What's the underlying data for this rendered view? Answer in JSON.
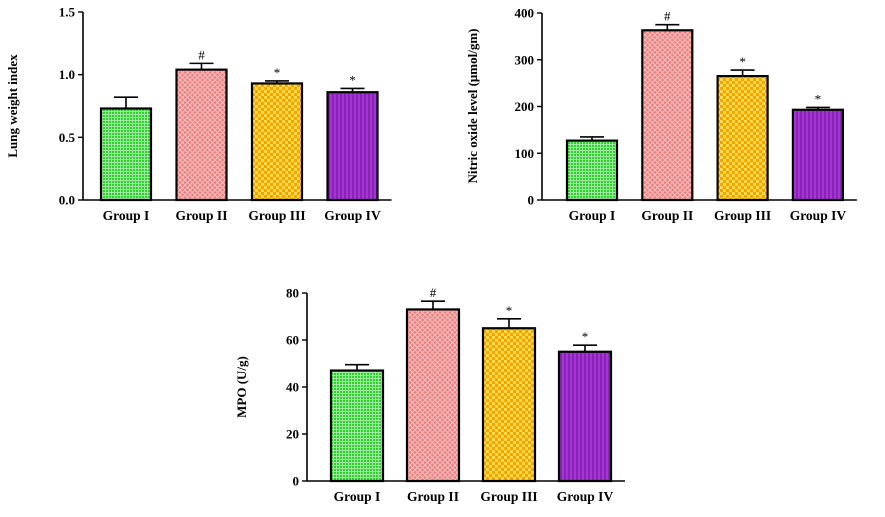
{
  "colors": {
    "group1": "#2fd12f",
    "group2": "#f08080",
    "group3": "#f5a500",
    "group4": "#a633d6",
    "axis": "#000000"
  },
  "chart_data": [
    {
      "id": "lung",
      "type": "bar",
      "title": "",
      "xlabel": "",
      "ylabel": "Lung weight index",
      "categories": [
        "Group I",
        "Group II",
        "Group III",
        "Group IV"
      ],
      "values": [
        0.73,
        1.04,
        0.93,
        0.86
      ],
      "errors": [
        0.09,
        0.05,
        0.02,
        0.03
      ],
      "significance": [
        "",
        "#",
        "*",
        "*"
      ],
      "ylim": [
        0,
        1.5
      ],
      "yticks": [
        0,
        0.5,
        1.0,
        1.5
      ],
      "ytick_labels": [
        "0.0",
        "0.5",
        "1.0",
        "1.5"
      ],
      "patterns": [
        "grid",
        "crosshatch",
        "checker",
        "vlines"
      ],
      "grid": false,
      "legend": "none"
    },
    {
      "id": "no",
      "type": "bar",
      "title": "",
      "xlabel": "",
      "ylabel": "Nitric oxide level (μmol/gm)",
      "categories": [
        "Group I",
        "Group II",
        "Group III",
        "Group IV"
      ],
      "values": [
        127,
        363,
        265,
        193
      ],
      "errors": [
        8,
        12,
        13,
        5
      ],
      "significance": [
        "",
        "#",
        "*",
        "*"
      ],
      "ylim": [
        0,
        400
      ],
      "yticks": [
        0,
        100,
        200,
        300,
        400
      ],
      "ytick_labels": [
        "0",
        "100",
        "200",
        "300",
        "400"
      ],
      "patterns": [
        "grid",
        "crosshatch",
        "checker",
        "vlines"
      ],
      "grid": false,
      "legend": "none"
    },
    {
      "id": "mpo",
      "type": "bar",
      "title": "",
      "xlabel": "",
      "ylabel": "MPO (U/g)",
      "categories": [
        "Group I",
        "Group II",
        "Group III",
        "Group IV"
      ],
      "values": [
        47,
        73,
        65,
        55
      ],
      "errors": [
        2.5,
        3.5,
        4,
        2.8
      ],
      "significance": [
        "",
        "#",
        "*",
        "*"
      ],
      "ylim": [
        0,
        80
      ],
      "yticks": [
        0,
        20,
        40,
        60,
        80
      ],
      "ytick_labels": [
        "0",
        "20",
        "40",
        "60",
        "80"
      ],
      "patterns": [
        "grid",
        "crosshatch",
        "checker",
        "vlines"
      ],
      "grid": false,
      "legend": "none"
    }
  ]
}
